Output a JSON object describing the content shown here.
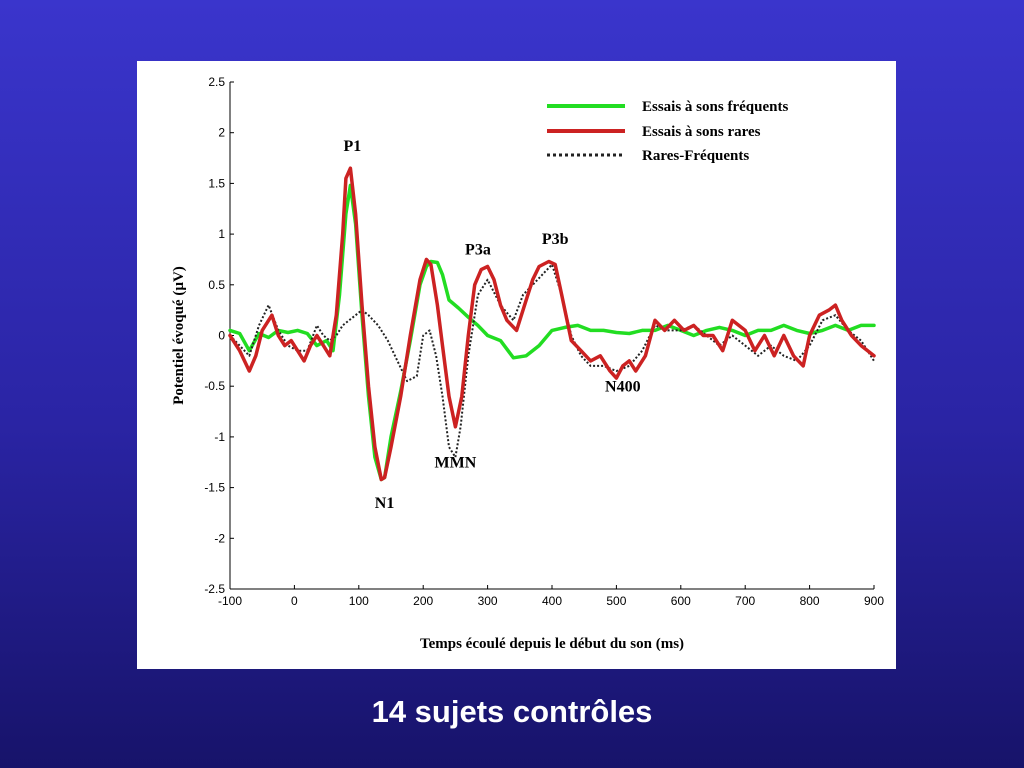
{
  "caption": "14 sujets contrôles",
  "chart_data": {
    "type": "line",
    "title": "",
    "xlabel": "Temps écoulé depuis le début du son (ms)",
    "ylabel": "Potentiel évoqué (µV)",
    "xlim": [
      -100,
      900
    ],
    "ylim": [
      -2.5,
      2.5
    ],
    "xticks": [
      -100,
      0,
      100,
      200,
      300,
      400,
      500,
      600,
      700,
      800,
      900
    ],
    "yticks": [
      -2.5,
      -2,
      -1.5,
      -1,
      -0.5,
      0,
      0.5,
      1,
      1.5,
      2,
      2.5
    ],
    "grid": false,
    "legend_position": "top-right",
    "series": [
      {
        "name": "Essais à sons fréquents",
        "color": "#22dd22",
        "style": "solid",
        "x": [
          -100,
          -85,
          -70,
          -55,
          -40,
          -25,
          -10,
          5,
          20,
          35,
          50,
          60,
          70,
          80,
          87,
          95,
          105,
          115,
          125,
          135,
          140,
          150,
          165,
          180,
          195,
          205,
          212,
          222,
          230,
          240,
          255,
          270,
          285,
          300,
          320,
          340,
          360,
          380,
          400,
          420,
          440,
          460,
          480,
          500,
          520,
          540,
          560,
          580,
          600,
          620,
          640,
          660,
          680,
          700,
          720,
          740,
          760,
          780,
          800,
          820,
          840,
          860,
          880,
          900
        ],
        "y": [
          0.05,
          0.02,
          -0.15,
          0.02,
          -0.02,
          0.05,
          0.03,
          0.05,
          0.02,
          -0.1,
          -0.05,
          -0.15,
          0.4,
          1.2,
          1.48,
          1.1,
          0.2,
          -0.6,
          -1.2,
          -1.42,
          -1.4,
          -1.0,
          -0.55,
          -0.05,
          0.5,
          0.68,
          0.73,
          0.72,
          0.6,
          0.35,
          0.27,
          0.18,
          0.1,
          0.0,
          -0.05,
          -0.22,
          -0.2,
          -0.1,
          0.05,
          0.08,
          0.1,
          0.05,
          0.05,
          0.03,
          0.02,
          0.05,
          0.05,
          0.1,
          0.05,
          0.0,
          0.05,
          0.08,
          0.05,
          0.0,
          0.05,
          0.05,
          0.1,
          0.05,
          0.02,
          0.05,
          0.1,
          0.05,
          0.1,
          0.1
        ]
      },
      {
        "name": "Essais à sons rares",
        "color": "#cc2222",
        "style": "solid",
        "x": [
          -100,
          -85,
          -70,
          -60,
          -50,
          -35,
          -25,
          -15,
          -5,
          5,
          15,
          25,
          35,
          45,
          55,
          65,
          75,
          80,
          87,
          95,
          105,
          115,
          125,
          135,
          140,
          150,
          165,
          180,
          195,
          205,
          212,
          222,
          230,
          240,
          250,
          260,
          270,
          280,
          290,
          300,
          310,
          320,
          330,
          345,
          360,
          370,
          380,
          395,
          405,
          415,
          430,
          445,
          460,
          475,
          490,
          500,
          510,
          520,
          530,
          545,
          560,
          575,
          590,
          605,
          620,
          635,
          650,
          665,
          680,
          700,
          715,
          730,
          745,
          760,
          775,
          790,
          800,
          815,
          830,
          840,
          850,
          865,
          880,
          900
        ],
        "y": [
          0.0,
          -0.15,
          -0.35,
          -0.2,
          0.05,
          0.2,
          0.0,
          -0.1,
          -0.05,
          -0.15,
          -0.25,
          -0.1,
          0.0,
          -0.1,
          -0.2,
          0.2,
          1.0,
          1.55,
          1.65,
          1.2,
          0.3,
          -0.5,
          -1.1,
          -1.42,
          -1.4,
          -1.1,
          -0.6,
          0.0,
          0.55,
          0.75,
          0.7,
          0.3,
          -0.1,
          -0.6,
          -0.9,
          -0.6,
          0.0,
          0.5,
          0.65,
          0.68,
          0.55,
          0.3,
          0.15,
          0.05,
          0.35,
          0.55,
          0.68,
          0.73,
          0.7,
          0.4,
          -0.05,
          -0.15,
          -0.25,
          -0.2,
          -0.35,
          -0.42,
          -0.3,
          -0.25,
          -0.35,
          -0.2,
          0.15,
          0.05,
          0.15,
          0.05,
          0.1,
          0.0,
          0.0,
          -0.15,
          0.15,
          0.05,
          -0.15,
          0.0,
          -0.2,
          0.0,
          -0.2,
          -0.3,
          0.0,
          0.2,
          0.25,
          0.3,
          0.15,
          0.0,
          -0.1,
          -0.2
        ]
      },
      {
        "name": "Rares-Fréquents",
        "color": "#222222",
        "style": "dotted",
        "x": [
          -100,
          -85,
          -70,
          -55,
          -40,
          -25,
          -10,
          5,
          20,
          35,
          45,
          55,
          65,
          75,
          85,
          95,
          105,
          115,
          130,
          145,
          160,
          175,
          190,
          200,
          210,
          220,
          230,
          240,
          250,
          258,
          270,
          285,
          300,
          320,
          340,
          355,
          370,
          385,
          400,
          415,
          430,
          445,
          460,
          480,
          500,
          520,
          540,
          560,
          580,
          600,
          620,
          640,
          660,
          680,
          700,
          720,
          740,
          760,
          780,
          800,
          820,
          840,
          860,
          880,
          900
        ],
        "y": [
          0.0,
          -0.1,
          -0.2,
          0.1,
          0.3,
          0.05,
          -0.1,
          -0.15,
          -0.15,
          0.1,
          0.0,
          -0.05,
          0.0,
          0.1,
          0.15,
          0.2,
          0.25,
          0.2,
          0.1,
          -0.05,
          -0.25,
          -0.45,
          -0.4,
          0.0,
          0.05,
          -0.2,
          -0.6,
          -1.1,
          -1.2,
          -0.9,
          -0.2,
          0.4,
          0.55,
          0.3,
          0.15,
          0.4,
          0.5,
          0.6,
          0.7,
          0.4,
          0.0,
          -0.2,
          -0.3,
          -0.3,
          -0.35,
          -0.3,
          -0.15,
          0.1,
          0.05,
          0.05,
          0.1,
          0.0,
          -0.1,
          0.0,
          -0.1,
          -0.2,
          -0.1,
          -0.2,
          -0.25,
          -0.1,
          0.15,
          0.2,
          0.05,
          -0.05,
          -0.25
        ]
      }
    ],
    "annotations": [
      {
        "text": "P1",
        "x": 90,
        "y": 1.82
      },
      {
        "text": "N1",
        "x": 140,
        "y": -1.7
      },
      {
        "text": "P3a",
        "x": 285,
        "y": 0.8
      },
      {
        "text": "MMN",
        "x": 250,
        "y": -1.3
      },
      {
        "text": "P3b",
        "x": 405,
        "y": 0.9
      },
      {
        "text": "N400",
        "x": 510,
        "y": -0.55
      }
    ]
  }
}
